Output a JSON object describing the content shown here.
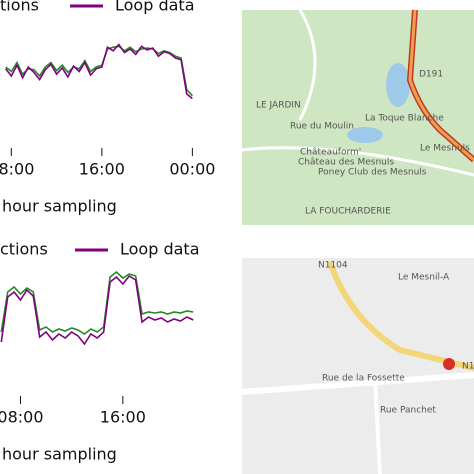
{
  "chart_data": [
    {
      "type": "line",
      "legend_texts": [
        "tions"
      ],
      "x": [
        7.5,
        8,
        8.5,
        9,
        9.5,
        10,
        10.5,
        11,
        11.5,
        12,
        12.5,
        13,
        13.5,
        14,
        14.5,
        15,
        15.5,
        16,
        16.5,
        17,
        17.5,
        18,
        18.5,
        19,
        19.5,
        20,
        20.5,
        21,
        21.5,
        22,
        22.5,
        23,
        23.5,
        24
      ],
      "series": [
        {
          "name": "Loop data",
          "color": "#800080",
          "values": [
            48,
            40,
            52,
            38,
            50,
            44,
            36,
            47,
            53,
            42,
            49,
            39,
            51,
            45,
            55,
            41,
            48,
            50,
            72,
            68,
            75,
            66,
            70,
            64,
            73,
            69,
            71,
            62,
            67,
            65,
            60,
            58,
            20,
            15
          ]
        },
        {
          "color": "#228b22",
          "values": [
            50,
            45,
            55,
            42,
            48,
            47,
            40,
            50,
            55,
            46,
            52,
            44,
            50,
            48,
            57,
            45,
            50,
            52,
            70,
            72,
            73,
            68,
            72,
            67,
            70,
            71,
            70,
            65,
            68,
            66,
            62,
            60,
            25,
            18
          ]
        }
      ],
      "xlim": [
        7,
        26
      ],
      "ylim": [
        0,
        100
      ],
      "xticks": [
        {
          "value": 8,
          "label": "08:00"
        },
        {
          "value": 16,
          "label": "16:00"
        },
        {
          "value": 24,
          "label": "00:00"
        }
      ],
      "x_label": "hour sampling"
    },
    {
      "type": "line",
      "legend_texts": [
        "ctions"
      ],
      "x": [
        6.5,
        7,
        7.5,
        8,
        8.5,
        9,
        9.5,
        10,
        10.5,
        11,
        11.5,
        12,
        12.5,
        13,
        13.5,
        14,
        14.5,
        15,
        15.5,
        16,
        16.5,
        17,
        17.5,
        18,
        18.5,
        19,
        19.5,
        20,
        20.5,
        21,
        21.5
      ],
      "series": [
        {
          "name": "Loop data",
          "color": "#800080",
          "values": [
            20,
            65,
            70,
            62,
            72,
            66,
            25,
            30,
            22,
            28,
            24,
            30,
            26,
            18,
            28,
            24,
            30,
            80,
            85,
            78,
            86,
            82,
            40,
            45,
            42,
            44,
            40,
            43,
            41,
            45,
            42
          ]
        },
        {
          "color": "#228b22",
          "values": [
            30,
            70,
            75,
            68,
            74,
            70,
            32,
            35,
            30,
            33,
            31,
            34,
            32,
            28,
            33,
            30,
            35,
            85,
            90,
            84,
            88,
            86,
            48,
            50,
            49,
            50,
            48,
            50,
            49,
            51,
            50
          ]
        }
      ],
      "xlim": [
        6.4,
        23.2
      ],
      "ylim": [
        0,
        100
      ],
      "xticks": [
        {
          "value": 8,
          "label": "08:00"
        },
        {
          "value": 16,
          "label": "16:00"
        }
      ],
      "x_label": "hour sampling"
    }
  ],
  "maps": [
    {
      "labels": [
        "LE JARDIN",
        "Châteauform'",
        "Château des Mesnuls",
        "La Toque Blanche",
        "Poney Club des Mesnuls",
        "LA FOUCHARDERIE",
        "D191",
        "Le Mesnuls",
        "Rue du Moulin"
      ]
    },
    {
      "labels": [
        "N1104",
        "Le Mesnil-A",
        "Rue de la Fossette",
        "N1",
        "Rue Panchet"
      ]
    }
  ]
}
